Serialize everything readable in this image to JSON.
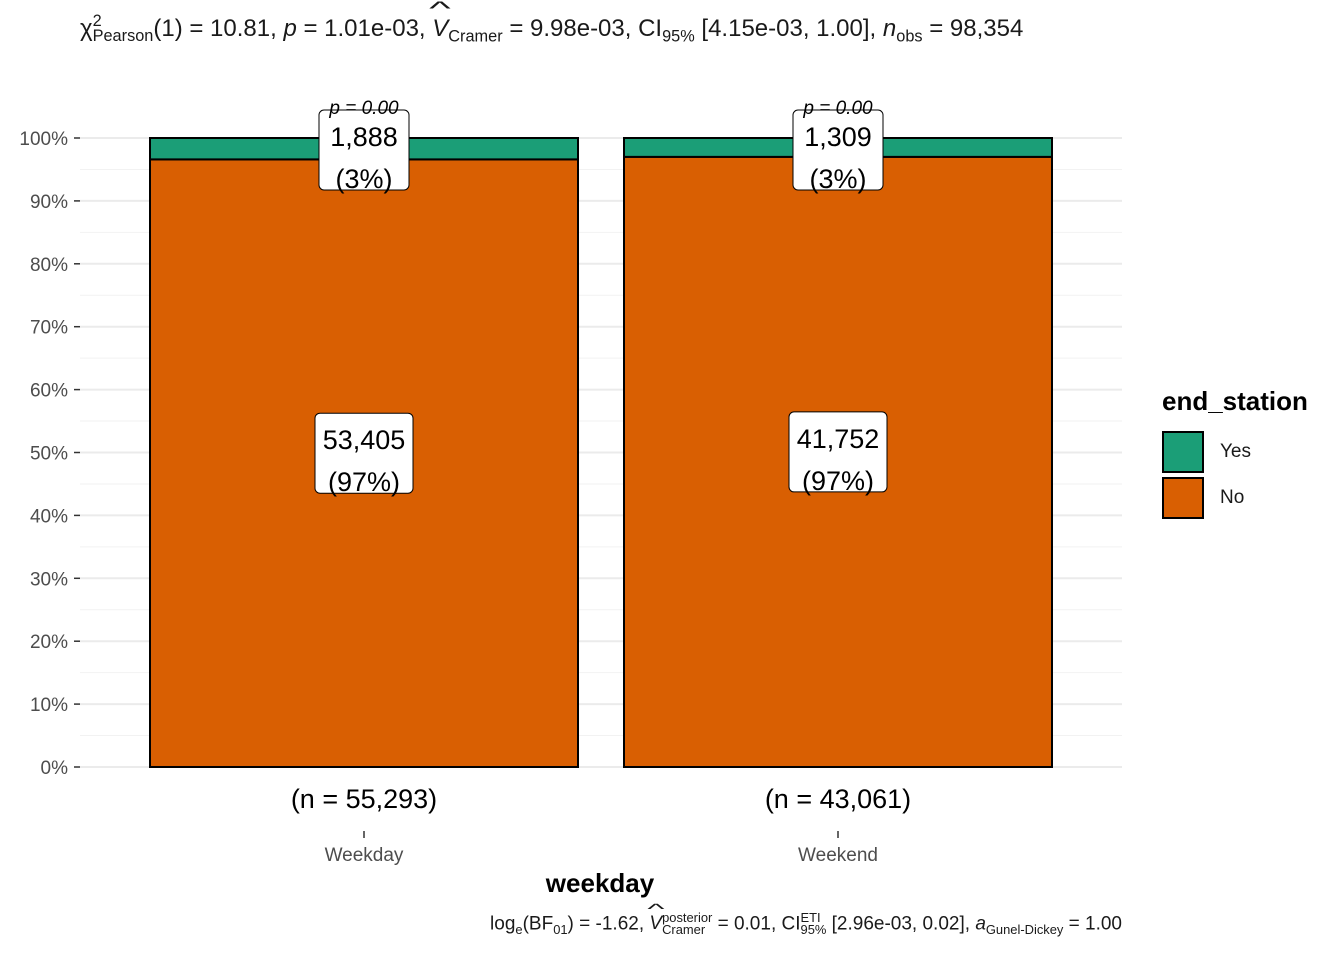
{
  "title": {
    "chi": "χ",
    "chi_sup": "2",
    "chi_sub": "Pearson",
    "df": "(1) = 10.81, ",
    "p_sym": "p",
    "p_val": " = 1.01e-03, ",
    "v_sym": "V",
    "v_sub": "Cramer",
    "v_val": " = 9.98e-03, CI",
    "ci_sub": "95%",
    "ci_val": " [4.15e-03, 1.00], ",
    "n_sym": "n",
    "n_sub": "obs",
    "n_val": " = 98,354"
  },
  "subtitle": {
    "log": "log",
    "log_sub": "e",
    "bf": "(BF",
    "bf_sub": "01",
    "bf_val": ") = -1.62, ",
    "v_sym": "V",
    "v_sup": "posterior",
    "v_sub": "Cramer",
    "v_val": " = 0.01, CI",
    "ci_sup": "ETI",
    "ci_sub": "95%",
    "ci_val": " [2.96e-03, 0.02], ",
    "a_sym": "a",
    "a_sub": "Gunel-Dickey",
    "a_val": " = 1.00"
  },
  "chart_data": {
    "type": "bar",
    "stacked": true,
    "percent": true,
    "categories": [
      "Weekday",
      "Weekend"
    ],
    "xlabel": "weekday",
    "ylabel": "",
    "ylim": [
      0,
      100
    ],
    "yticks": [
      "0%",
      "10%",
      "20%",
      "30%",
      "40%",
      "50%",
      "60%",
      "70%",
      "80%",
      "90%",
      "100%"
    ],
    "group_counts": [
      "(n = 55,293)",
      "(n = 43,061)"
    ],
    "series": [
      {
        "name": "No",
        "color": "#D95F02",
        "values": [
          96.6,
          97.0
        ],
        "counts": [
          "53,405",
          "41,752"
        ],
        "pct_labels": [
          "(97%)",
          "(97%)"
        ]
      },
      {
        "name": "Yes",
        "color": "#1B9E77",
        "values": [
          3.4,
          3.0
        ],
        "counts": [
          "1,888",
          "1,309"
        ],
        "pct_labels": [
          "(3%)",
          "(3%)"
        ]
      }
    ],
    "top_labels": [
      "p = 0.00",
      "p = 0.00"
    ],
    "grid": true,
    "legend": {
      "title": "end_station",
      "position": "right",
      "items": [
        "Yes",
        "No"
      ]
    }
  }
}
